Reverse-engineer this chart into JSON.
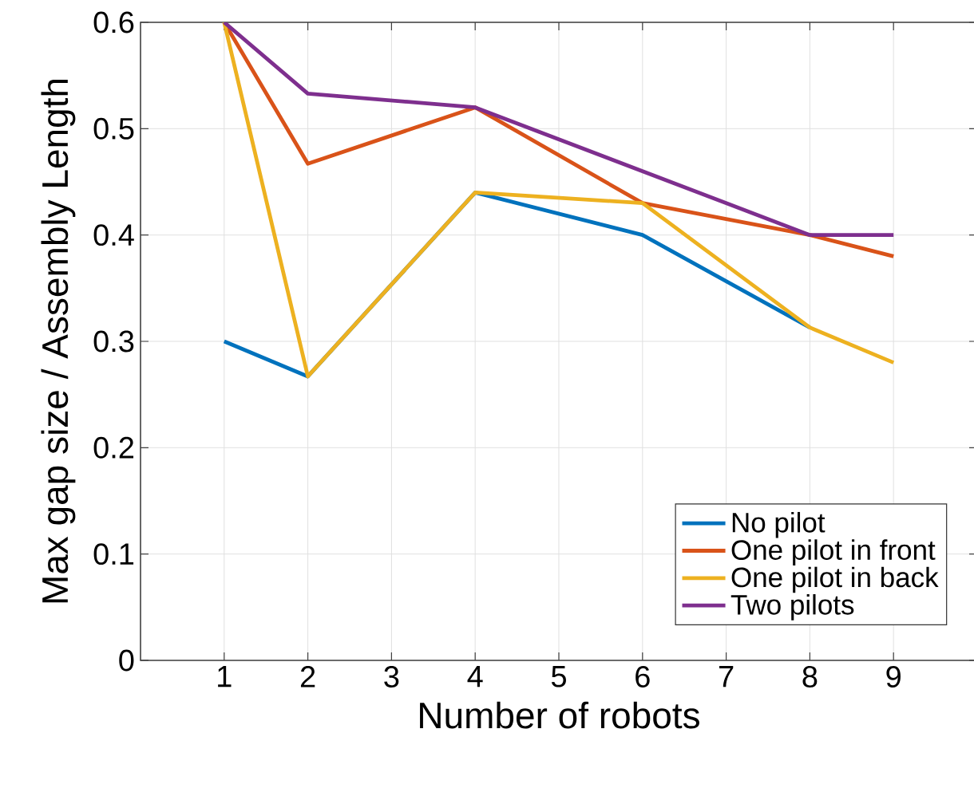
{
  "chart_data": {
    "type": "line",
    "xlabel": "Number of robots",
    "ylabel": "Max gap size / Assembly Length",
    "xlim": [
      0,
      10
    ],
    "xticks": [
      1,
      2,
      3,
      4,
      5,
      6,
      7,
      8,
      9
    ],
    "ylim": [
      0,
      0.6
    ],
    "yticks": [
      0,
      0.1,
      0.2,
      0.3,
      0.4,
      0.5,
      0.6
    ],
    "grid": true,
    "legend": "bottom right",
    "marker": "none",
    "line_style": "solid",
    "x": [
      1,
      2,
      4,
      6,
      8,
      9
    ],
    "series": [
      {
        "name": "No pilot",
        "color": "#0072bd",
        "values": [
          0.3,
          0.267,
          0.44,
          0.4,
          0.313,
          null
        ]
      },
      {
        "name": "One pilot in front",
        "color": "#d95319",
        "values": [
          0.6,
          0.467,
          0.52,
          0.43,
          0.4,
          0.38
        ]
      },
      {
        "name": "One pilot in back",
        "color": "#edb120",
        "values": [
          0.6,
          0.267,
          0.44,
          0.43,
          0.313,
          0.28
        ]
      },
      {
        "name": "Two pilots",
        "color": "#7e2f8e",
        "values": [
          0.6,
          0.533,
          0.52,
          0.46,
          0.4,
          0.4
        ]
      }
    ]
  }
}
